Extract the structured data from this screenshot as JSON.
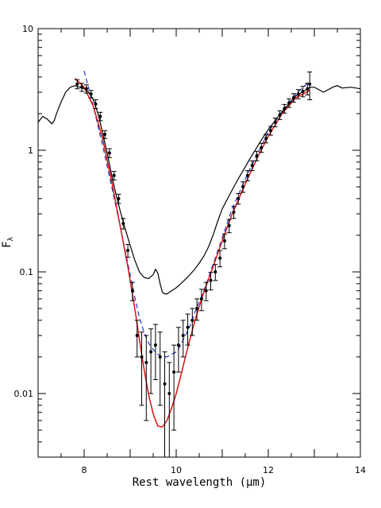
{
  "chart_data": {
    "type": "line",
    "title": "",
    "xlabel": "Rest wavelength (μm)",
    "ylabel": "F_λ",
    "xlim": [
      7,
      14
    ],
    "ylim": [
      0.003,
      10
    ],
    "y_scale": "log",
    "x_ticks": [
      8,
      10,
      12,
      14
    ],
    "y_ticks": [
      {
        "value": 10,
        "label": "10"
      },
      {
        "value": 1,
        "label": "1"
      },
      {
        "value": 0.1,
        "label": "0.1"
      },
      {
        "value": 0.01,
        "label": "0.01"
      }
    ],
    "grid": false,
    "legend": "none",
    "series": [
      {
        "style": "solid",
        "color": "#000000",
        "x": [
          7.0,
          7.1,
          7.2,
          7.3,
          7.35,
          7.4,
          7.5,
          7.6,
          7.7,
          7.8,
          7.9,
          8.0,
          8.1,
          8.2,
          8.3,
          8.4,
          8.5,
          8.6,
          8.7,
          8.8,
          8.9,
          9.0,
          9.1,
          9.2,
          9.3,
          9.4,
          9.5,
          9.55,
          9.6,
          9.65,
          9.7,
          9.75,
          9.8,
          9.85,
          9.9,
          10.0,
          10.1,
          10.2,
          10.3,
          10.4,
          10.5,
          10.6,
          10.7,
          10.8,
          10.9,
          11.0,
          11.1,
          11.2,
          11.3,
          11.4,
          11.5,
          11.6,
          11.7,
          11.8,
          11.9,
          12.0,
          12.2,
          12.4,
          12.6,
          12.8,
          12.9,
          13.0,
          13.2,
          13.4,
          13.5,
          13.6,
          13.8,
          14.0
        ],
        "y": [
          1.7,
          1.9,
          1.8,
          1.65,
          1.75,
          2.0,
          2.5,
          3.0,
          3.3,
          3.4,
          3.3,
          3.2,
          3.0,
          2.6,
          2.0,
          1.4,
          0.95,
          0.62,
          0.42,
          0.3,
          0.22,
          0.165,
          0.125,
          0.1,
          0.09,
          0.088,
          0.095,
          0.105,
          0.098,
          0.08,
          0.068,
          0.066,
          0.066,
          0.068,
          0.07,
          0.074,
          0.08,
          0.087,
          0.095,
          0.105,
          0.118,
          0.135,
          0.16,
          0.2,
          0.26,
          0.33,
          0.39,
          0.46,
          0.54,
          0.63,
          0.73,
          0.85,
          0.98,
          1.13,
          1.3,
          1.48,
          1.85,
          2.3,
          2.8,
          3.1,
          3.3,
          3.3,
          3.0,
          3.3,
          3.4,
          3.25,
          3.3,
          3.2
        ]
      },
      {
        "style": "dashed",
        "color": "#2233cc",
        "x": [
          8.0,
          8.2,
          8.4,
          8.6,
          8.8,
          9.0,
          9.1,
          9.2,
          9.3,
          9.4,
          9.5,
          9.6,
          9.7,
          9.8,
          9.9,
          10.0,
          10.1,
          10.2,
          10.3,
          10.4,
          10.6,
          10.8,
          11.0,
          11.2,
          11.5,
          11.8,
          12.0,
          12.3,
          12.6,
          12.9
        ],
        "y": [
          4.5,
          2.3,
          1.1,
          0.5,
          0.22,
          0.095,
          0.062,
          0.042,
          0.032,
          0.026,
          0.023,
          0.021,
          0.02,
          0.02,
          0.021,
          0.022,
          0.025,
          0.03,
          0.036,
          0.046,
          0.07,
          0.115,
          0.19,
          0.32,
          0.58,
          1.0,
          1.4,
          2.1,
          2.9,
          3.7
        ]
      },
      {
        "style": "solid",
        "color": "#dd1111",
        "x": [
          7.8,
          8.0,
          8.2,
          8.4,
          8.6,
          8.8,
          8.95,
          9.1,
          9.2,
          9.3,
          9.4,
          9.5,
          9.6,
          9.7,
          9.8,
          9.9,
          10.0,
          10.1,
          10.2,
          10.3,
          10.4,
          10.5,
          10.6,
          10.8,
          11.0,
          11.2,
          11.5,
          11.8,
          12.0,
          12.3,
          12.6,
          12.9
        ],
        "y": [
          3.9,
          3.3,
          2.3,
          1.25,
          0.55,
          0.22,
          0.11,
          0.05,
          0.028,
          0.016,
          0.0098,
          0.0068,
          0.0054,
          0.0053,
          0.006,
          0.0076,
          0.01,
          0.014,
          0.02,
          0.028,
          0.039,
          0.052,
          0.068,
          0.11,
          0.18,
          0.29,
          0.53,
          0.93,
          1.3,
          2.0,
          2.7,
          3.1
        ]
      },
      {
        "style": "points_with_errorbars",
        "color": "#000000",
        "x": [
          7.85,
          7.95,
          8.05,
          8.15,
          8.25,
          8.35,
          8.45,
          8.55,
          8.65,
          8.75,
          8.85,
          8.95,
          9.05,
          9.15,
          9.25,
          9.35,
          9.45,
          9.55,
          9.65,
          9.75,
          9.85,
          9.95,
          10.05,
          10.15,
          10.25,
          10.35,
          10.45,
          10.55,
          10.65,
          10.75,
          10.85,
          10.95,
          11.05,
          11.15,
          11.25,
          11.35,
          11.45,
          11.55,
          11.65,
          11.75,
          11.85,
          11.95,
          12.05,
          12.15,
          12.25,
          12.35,
          12.45,
          12.55,
          12.65,
          12.75,
          12.85,
          12.9
        ],
        "y": [
          3.5,
          3.3,
          3.2,
          2.9,
          2.4,
          1.9,
          1.35,
          0.95,
          0.62,
          0.4,
          0.25,
          0.15,
          0.07,
          0.03,
          0.02,
          0.018,
          0.022,
          0.025,
          0.02,
          0.012,
          0.01,
          0.015,
          0.025,
          0.03,
          0.035,
          0.04,
          0.05,
          0.06,
          0.07,
          0.085,
          0.1,
          0.13,
          0.18,
          0.24,
          0.31,
          0.4,
          0.5,
          0.62,
          0.75,
          0.9,
          1.05,
          1.25,
          1.45,
          1.7,
          1.95,
          2.2,
          2.45,
          2.7,
          2.9,
          3.05,
          3.2,
          3.5
        ],
        "err": [
          0.3,
          0.25,
          0.25,
          0.2,
          0.2,
          0.15,
          0.1,
          0.08,
          0.05,
          0.035,
          0.025,
          0.018,
          0.012,
          0.01,
          0.012,
          0.012,
          0.012,
          0.012,
          0.012,
          0.01,
          0.008,
          0.01,
          0.01,
          0.01,
          0.01,
          0.01,
          0.01,
          0.012,
          0.012,
          0.014,
          0.015,
          0.02,
          0.025,
          0.03,
          0.035,
          0.04,
          0.05,
          0.06,
          0.07,
          0.08,
          0.09,
          0.1,
          0.12,
          0.14,
          0.16,
          0.18,
          0.2,
          0.22,
          0.25,
          0.3,
          0.35,
          0.9
        ]
      }
    ]
  }
}
